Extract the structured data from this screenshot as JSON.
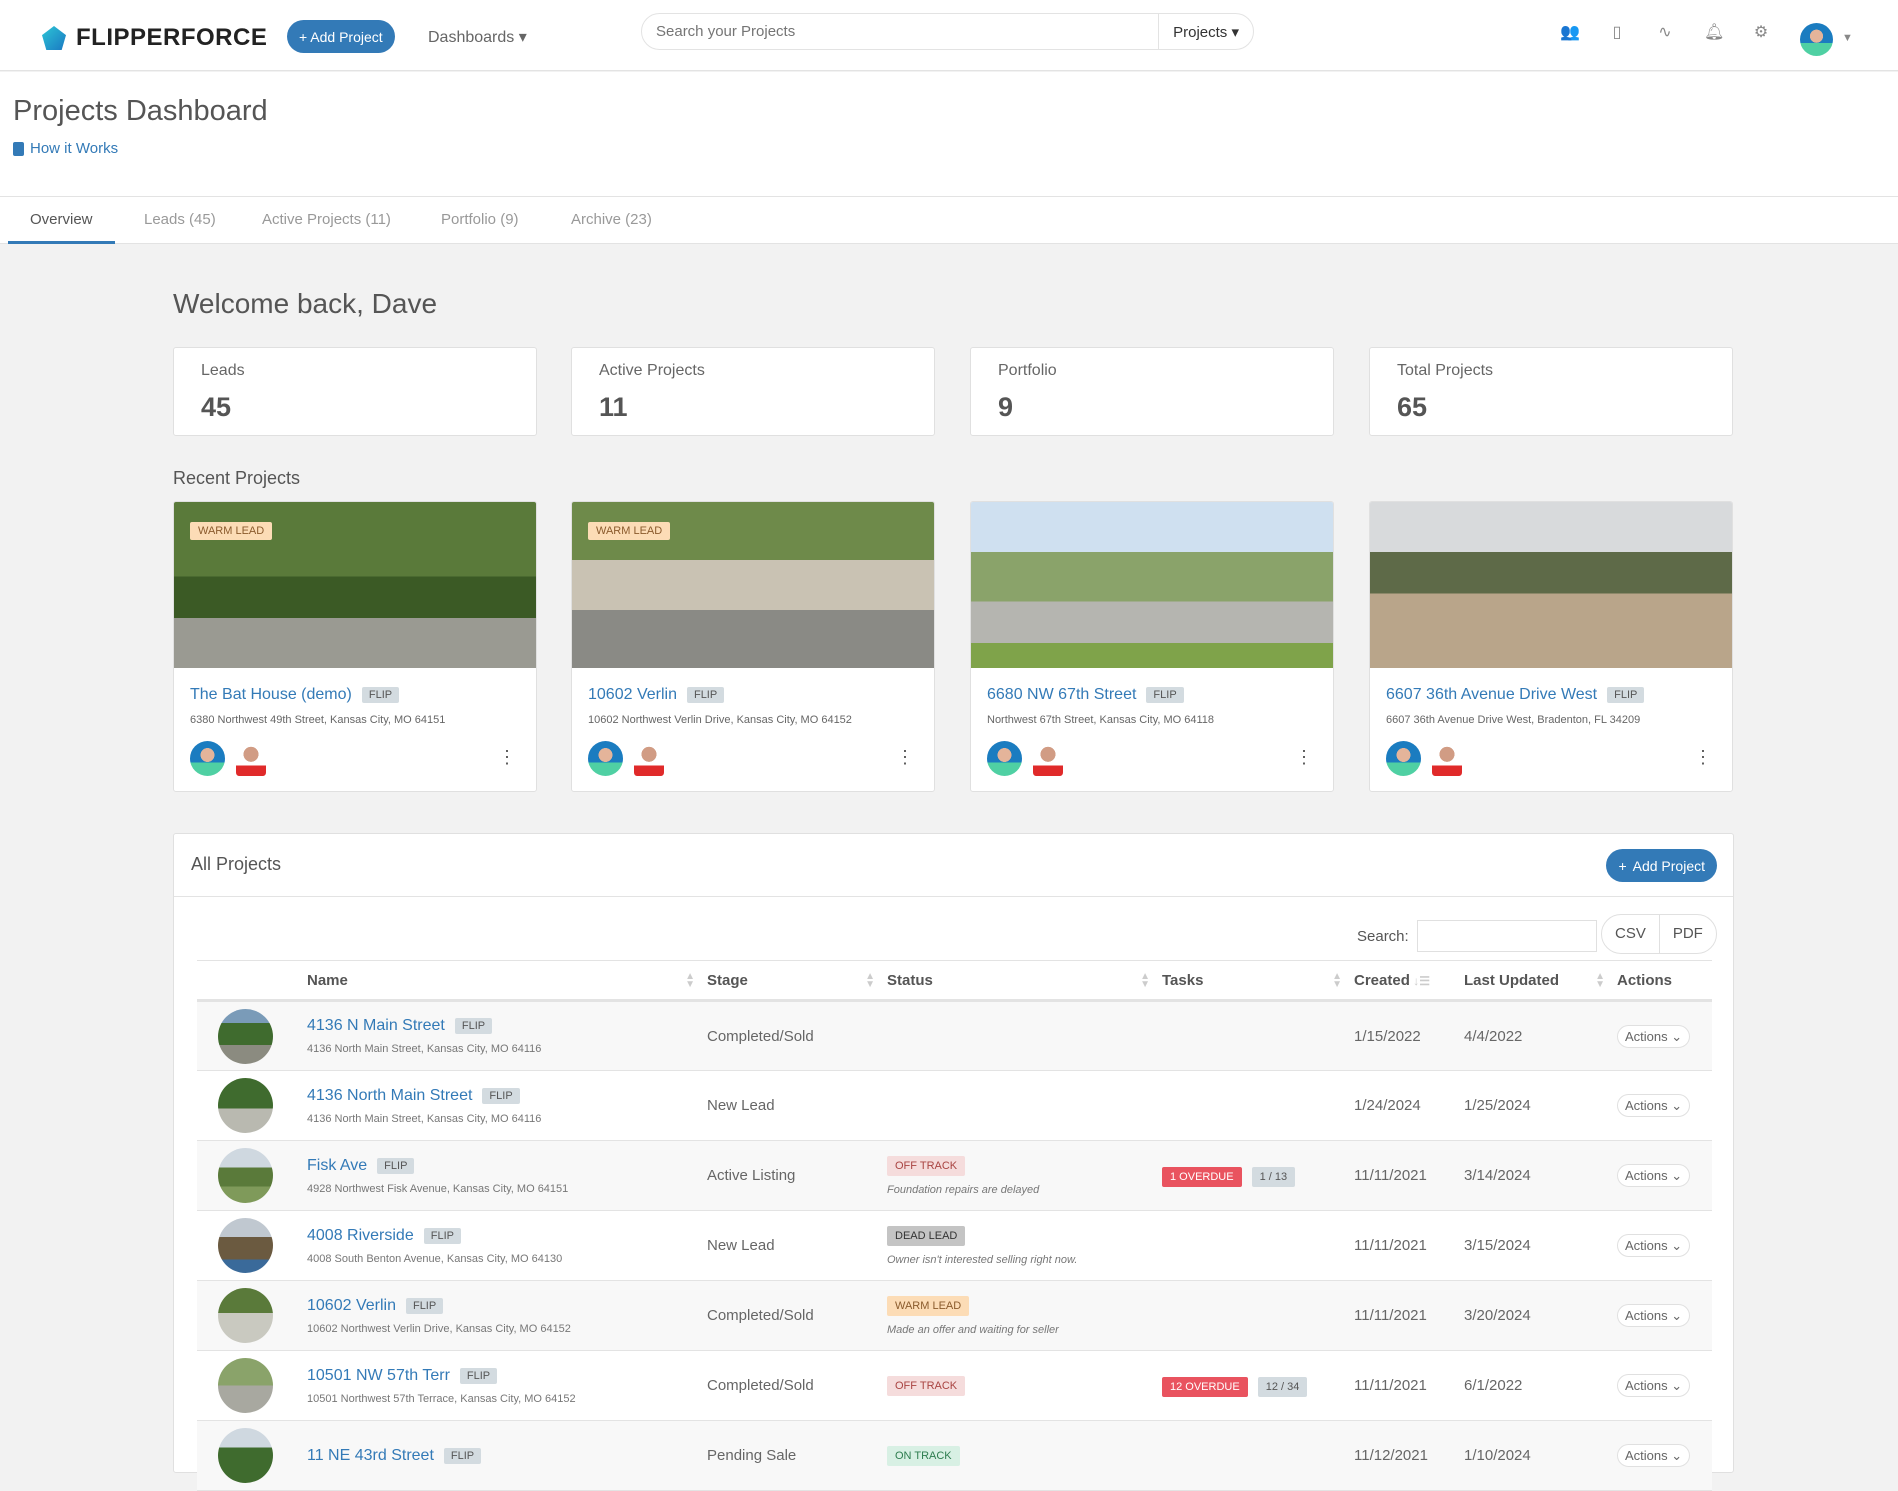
{
  "header": {
    "brand": "FLIPPERFORCE",
    "add_project": "+ Add Project",
    "dashboards": "Dashboards ▾",
    "search_placeholder": "Search your Projects",
    "search_scope": "Projects ▾"
  },
  "page": {
    "title": "Projects Dashboard",
    "how_it_works": "How it Works"
  },
  "tabs": [
    {
      "label": "Overview"
    },
    {
      "label": "Leads (45)"
    },
    {
      "label": "Active Projects (11)"
    },
    {
      "label": "Portfolio (9)"
    },
    {
      "label": "Archive (23)"
    }
  ],
  "welcome": "Welcome back, Dave",
  "stats": [
    {
      "label": "Leads",
      "value": "45"
    },
    {
      "label": "Active Projects",
      "value": "11"
    },
    {
      "label": "Portfolio",
      "value": "9"
    },
    {
      "label": "Total Projects",
      "value": "65"
    }
  ],
  "recent_title": "Recent Projects",
  "recent": [
    {
      "badge": "WARM LEAD",
      "name": "The Bat House (demo)",
      "type": "FLIP",
      "address": "6380 Northwest 49th Street, Kansas City, MO 64151"
    },
    {
      "badge": "WARM LEAD",
      "name": "10602 Verlin",
      "type": "FLIP",
      "address": "10602 Northwest Verlin Drive, Kansas City, MO 64152"
    },
    {
      "badge": "",
      "name": "6680 NW 67th Street",
      "type": "FLIP",
      "address": "Northwest 67th Street, Kansas City, MO 64118"
    },
    {
      "badge": "",
      "name": "6607 36th Avenue Drive West",
      "type": "FLIP",
      "address": "6607 36th Avenue Drive West, Bradenton, FL 34209"
    }
  ],
  "all_projects": {
    "title": "All Projects",
    "add_project": "Add Project",
    "search_label": "Search:",
    "csv": "CSV",
    "pdf": "PDF",
    "columns": [
      "",
      "Name",
      "Stage",
      "Status",
      "Tasks",
      "Created",
      "Last Updated",
      "Actions"
    ],
    "rows": [
      {
        "name": "4136 N Main Street",
        "type": "FLIP",
        "address": "4136 North Main Street, Kansas City, MO 64116",
        "stage": "Completed/Sold",
        "status": "",
        "note": "",
        "overdue": "",
        "tasks": "",
        "created": "1/15/2022",
        "updated": "4/4/2022",
        "action": "Actions"
      },
      {
        "name": "4136 North Main Street",
        "type": "FLIP",
        "address": "4136 North Main Street, Kansas City, MO 64116",
        "stage": "New Lead",
        "status": "",
        "note": "",
        "overdue": "",
        "tasks": "",
        "created": "1/24/2024",
        "updated": "1/25/2024",
        "action": "Actions"
      },
      {
        "name": "Fisk Ave",
        "type": "FLIP",
        "address": "4928 Northwest Fisk Avenue, Kansas City, MO 64151",
        "stage": "Active Listing",
        "status": "OFF TRACK",
        "note": "Foundation repairs are delayed",
        "overdue": "1 OVERDUE",
        "tasks": "1 / 13",
        "created": "11/11/2021",
        "updated": "3/14/2024",
        "action": "Actions"
      },
      {
        "name": "4008 Riverside",
        "type": "FLIP",
        "address": "4008 South Benton Avenue, Kansas City, MO 64130",
        "stage": "New Lead",
        "status": "DEAD LEAD",
        "note": "Owner isn't interested selling right now.",
        "overdue": "",
        "tasks": "",
        "created": "11/11/2021",
        "updated": "3/15/2024",
        "action": "Actions"
      },
      {
        "name": "10602 Verlin",
        "type": "FLIP",
        "address": "10602 Northwest Verlin Drive, Kansas City, MO 64152",
        "stage": "Completed/Sold",
        "status": "WARM LEAD",
        "note": "Made an offer and waiting for seller",
        "overdue": "",
        "tasks": "",
        "created": "11/11/2021",
        "updated": "3/20/2024",
        "action": "Actions"
      },
      {
        "name": "10501 NW 57th Terr",
        "type": "FLIP",
        "address": "10501 Northwest 57th Terrace, Kansas City, MO 64152",
        "stage": "Completed/Sold",
        "status": "OFF TRACK",
        "note": "",
        "overdue": "12 OVERDUE",
        "tasks": "12 / 34",
        "created": "11/11/2021",
        "updated": "6/1/2022",
        "action": "Actions"
      },
      {
        "name": "11 NE 43rd Street",
        "type": "FLIP",
        "address": "",
        "stage": "Pending Sale",
        "status": "ON TRACK",
        "note": "",
        "overdue": "",
        "tasks": "",
        "created": "11/12/2021",
        "updated": "1/10/2024",
        "action": "Actions"
      }
    ]
  },
  "status_colors": {
    "OFF TRACK": [
      "#f5dcdc",
      "#a94442"
    ],
    "DEAD LEAD": [
      "#c4c4c4",
      "#333"
    ],
    "WARM LEAD": [
      "#fcdcb6",
      "#8a5a2c"
    ],
    "ON TRACK": [
      "#d8f0e4",
      "#2e7d4f"
    ]
  },
  "accent": "#337ab7"
}
